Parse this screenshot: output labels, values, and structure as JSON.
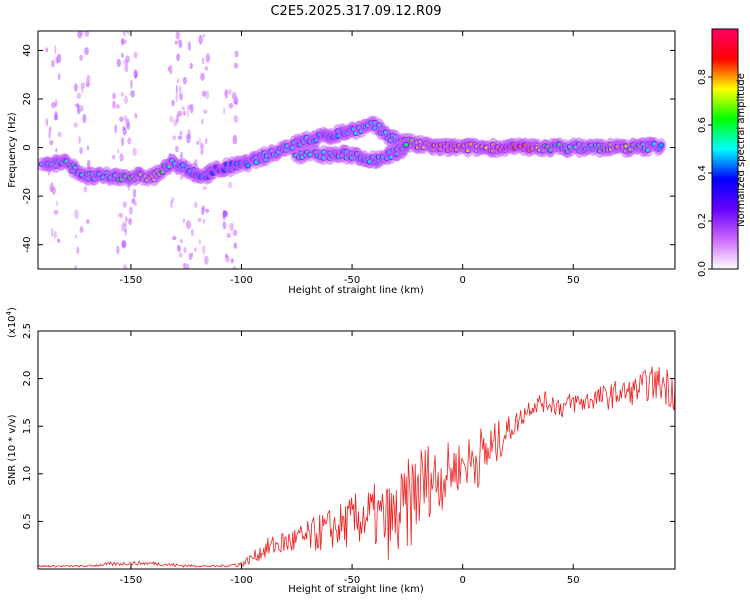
{
  "title": "C2E5.2025.317.09.12.R09",
  "colors": {
    "snr_line": "#ee2222",
    "colormap": [
      "#ffffff",
      "#cc66ff",
      "#6600ff",
      "#0000ff",
      "#00ffff",
      "#00ff00",
      "#ffff00",
      "#ff0000",
      "#ff0066"
    ]
  },
  "chart_data": [
    {
      "type": "heatmap",
      "name": "spectrogram",
      "xlabel": "Height of straight line (km)",
      "ylabel": "Frequency (Hz)",
      "xlim": [
        -192,
        96
      ],
      "ylim": [
        -50,
        48
      ],
      "xticks": [
        -150,
        -100,
        -50,
        0,
        50
      ],
      "xtick_labels": [
        "-150",
        "-100",
        "-50",
        "0",
        "50"
      ],
      "yticks": [
        -40,
        -20,
        0,
        20,
        40
      ],
      "ytick_labels": [
        "-40",
        "-20",
        "0",
        "20",
        "40"
      ],
      "colorbar": {
        "label": "Normalized spectral amplitude",
        "range": [
          0,
          1
        ],
        "ticks": [
          0.0,
          0.2,
          0.4,
          0.6,
          0.8
        ],
        "tick_labels": [
          "0.0",
          "0.2",
          "0.4",
          "0.6",
          "0.8"
        ]
      },
      "ridge": [
        {
          "x": -190,
          "f": -7,
          "amp": 0.5
        },
        {
          "x": -180,
          "f": -6,
          "amp": 0.55
        },
        {
          "x": -170,
          "f": -12,
          "amp": 0.55
        },
        {
          "x": -160,
          "f": -12,
          "amp": 0.5
        },
        {
          "x": -150,
          "f": -12,
          "amp": 0.65
        },
        {
          "x": -140,
          "f": -12,
          "amp": 0.75
        },
        {
          "x": -130,
          "f": -6,
          "amp": 0.5
        },
        {
          "x": -120,
          "f": -12,
          "amp": 0.45
        },
        {
          "x": -110,
          "f": -9,
          "amp": 0.4
        },
        {
          "x": -100,
          "f": -7,
          "amp": 0.45
        },
        {
          "x": -90,
          "f": -4,
          "amp": 0.5
        },
        {
          "x": -80,
          "f": 0,
          "amp": 0.5
        },
        {
          "x": -70,
          "f": 3,
          "amp": 0.5
        },
        {
          "x": -60,
          "f": 5,
          "amp": 0.45
        },
        {
          "x": -50,
          "f": 7,
          "amp": 0.5
        },
        {
          "x": -40,
          "f": 9,
          "amp": 0.5
        },
        {
          "x": -30,
          "f": 3,
          "amp": 0.5
        },
        {
          "x": -20,
          "f": 1,
          "amp": 0.75
        },
        {
          "x": -10,
          "f": 0,
          "amp": 0.8
        },
        {
          "x": 0,
          "f": 0,
          "amp": 0.8
        },
        {
          "x": 10,
          "f": 0,
          "amp": 0.75
        },
        {
          "x": 20,
          "f": 0,
          "amp": 0.85
        },
        {
          "x": 30,
          "f": 0,
          "amp": 0.85
        },
        {
          "x": 40,
          "f": 0,
          "amp": 0.6
        },
        {
          "x": 50,
          "f": 0,
          "amp": 0.55
        },
        {
          "x": 60,
          "f": 0,
          "amp": 0.55
        },
        {
          "x": 70,
          "f": 0,
          "amp": 0.8
        },
        {
          "x": 80,
          "f": 0,
          "amp": 0.6
        },
        {
          "x": 90,
          "f": 1,
          "amp": 0.45
        }
      ],
      "lower_branch": [
        {
          "x": -75,
          "f": -3,
          "amp": 0.55
        },
        {
          "x": -60,
          "f": -3,
          "amp": 0.5
        },
        {
          "x": -50,
          "f": -3,
          "amp": 0.55
        },
        {
          "x": -40,
          "f": -5,
          "amp": 0.5
        },
        {
          "x": -30,
          "f": -2,
          "amp": 0.5
        },
        {
          "x": -25,
          "f": 2,
          "amp": 0.6
        }
      ]
    },
    {
      "type": "line",
      "name": "snr",
      "xlabel": "Height of straight line (km)",
      "ylabel": "SNR (10 * v/v)",
      "y_multiplier_label": "(x10",
      "y_multiplier_exp": "4",
      "xlim": [
        -192,
        96
      ],
      "ylim": [
        0,
        2.5
      ],
      "xticks": [
        -150,
        -100,
        -50,
        0,
        50
      ],
      "xtick_labels": [
        "-150",
        "-100",
        "-50",
        "0",
        "50"
      ],
      "yticks": [
        0.5,
        1.0,
        1.5,
        2.0,
        2.5
      ],
      "ytick_labels": [
        "0.5",
        "1.0",
        "1.5",
        "2.0",
        "2.5"
      ],
      "series": [
        {
          "name": "SNR",
          "x": [
            -192,
            -180,
            -170,
            -160,
            -150,
            -140,
            -130,
            -120,
            -110,
            -100,
            -95,
            -90,
            -85,
            -80,
            -75,
            -70,
            -65,
            -60,
            -55,
            -50,
            -45,
            -40,
            -35,
            -30,
            -25,
            -20,
            -15,
            -10,
            -5,
            0,
            5,
            10,
            15,
            20,
            25,
            30,
            35,
            40,
            45,
            50,
            55,
            60,
            65,
            70,
            75,
            80,
            85,
            90,
            96
          ],
          "values": [
            0.03,
            0.03,
            0.03,
            0.05,
            0.06,
            0.06,
            0.04,
            0.03,
            0.03,
            0.05,
            0.12,
            0.2,
            0.25,
            0.28,
            0.3,
            0.33,
            0.38,
            0.42,
            0.45,
            0.5,
            0.55,
            0.55,
            0.5,
            0.5,
            0.65,
            0.85,
            0.95,
            0.95,
            1.05,
            1.1,
            1.15,
            1.2,
            1.3,
            1.45,
            1.55,
            1.7,
            1.75,
            1.75,
            1.7,
            1.75,
            1.75,
            1.8,
            1.8,
            1.85,
            1.85,
            1.9,
            1.95,
            1.95,
            1.9
          ],
          "noise": [
            0.01,
            0.01,
            0.01,
            0.02,
            0.02,
            0.02,
            0.02,
            0.01,
            0.01,
            0.03,
            0.06,
            0.1,
            0.12,
            0.14,
            0.16,
            0.18,
            0.2,
            0.22,
            0.25,
            0.28,
            0.3,
            0.35,
            0.4,
            0.45,
            0.5,
            0.5,
            0.4,
            0.35,
            0.3,
            0.25,
            0.3,
            0.35,
            0.25,
            0.15,
            0.12,
            0.1,
            0.1,
            0.12,
            0.12,
            0.12,
            0.12,
            0.12,
            0.14,
            0.14,
            0.14,
            0.16,
            0.18,
            0.2,
            0.25
          ]
        }
      ]
    }
  ]
}
